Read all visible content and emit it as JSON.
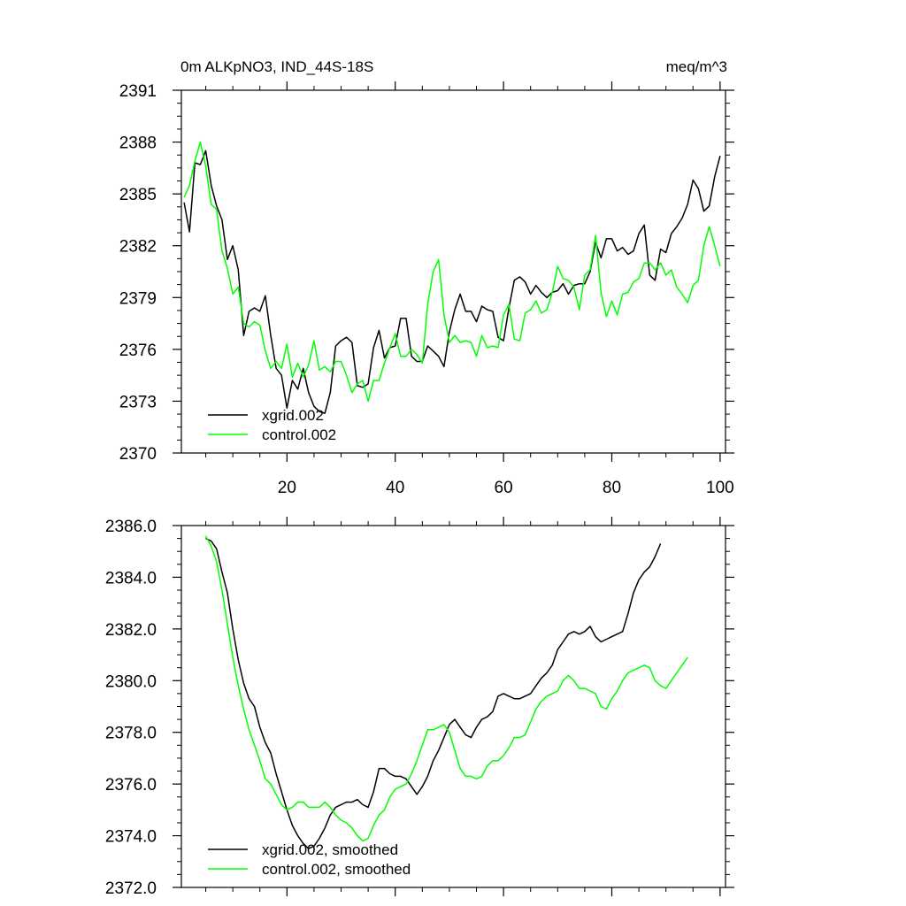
{
  "chart_data": [
    {
      "type": "line",
      "title_left": "0m ALKpNO3, IND_44S-18S",
      "title_right": "meq/m^3",
      "xlim": [
        0.5,
        101
      ],
      "ylim": [
        2370,
        2391
      ],
      "xticks": [
        20,
        40,
        60,
        80,
        100
      ],
      "xticklabels": [
        "20",
        "40",
        "60",
        "80",
        "100"
      ],
      "yticks": [
        2370,
        2373,
        2376,
        2379,
        2382,
        2385,
        2388,
        2391
      ],
      "yticklabels": [
        "2370",
        "2373",
        "2376",
        "2379",
        "2382",
        "2385",
        "2388",
        "2391"
      ],
      "legend_position": "lower-left",
      "series": [
        {
          "name": "xgrid.002",
          "color": "#000000",
          "x_start": 1,
          "values": [
            2384.5,
            2382.8,
            2386.8,
            2386.7,
            2387.5,
            2385.5,
            2384.3,
            2383.5,
            2381.2,
            2382.0,
            2380.6,
            2376.8,
            2378.2,
            2378.4,
            2378.2,
            2379.1,
            2376.8,
            2374.9,
            2374.5,
            2372.6,
            2374.2,
            2373.7,
            2374.9,
            2373.5,
            2372.7,
            2372.4,
            2372.3,
            2373.5,
            2376.2,
            2376.5,
            2376.7,
            2376.4,
            2373.9,
            2373.8,
            2374.0,
            2376.1,
            2377.1,
            2375.5,
            2376.1,
            2376.2,
            2377.8,
            2377.8,
            2375.6,
            2375.3,
            2375.3,
            2376.2,
            2375.9,
            2375.6,
            2375.0,
            2377.0,
            2378.3,
            2379.2,
            2378.2,
            2378.2,
            2377.6,
            2378.5,
            2378.3,
            2378.2,
            2376.7,
            2376.5,
            2378.4,
            2380.0,
            2380.2,
            2379.9,
            2379.2,
            2379.7,
            2379.3,
            2379.0,
            2379.3,
            2379.4,
            2379.8,
            2379.2,
            2379.7,
            2379.8,
            2379.8,
            2380.5,
            2382.2,
            2381.3,
            2382.4,
            2382.4,
            2381.7,
            2381.9,
            2381.5,
            2381.7,
            2382.7,
            2383.2,
            2380.3,
            2380.0,
            2381.8,
            2381.6,
            2382.7,
            2383.1,
            2383.6,
            2384.4,
            2385.8,
            2385.3,
            2384.0,
            2384.3,
            2386.0,
            2387.2
          ]
        },
        {
          "name": "control.002",
          "color": "#00ff00",
          "x_start": 1,
          "values": [
            2384.8,
            2385.5,
            2386.9,
            2388.0,
            2386.6,
            2384.4,
            2384.1,
            2381.7,
            2380.7,
            2379.2,
            2379.6,
            2377.5,
            2377.3,
            2377.6,
            2377.4,
            2375.9,
            2374.9,
            2375.3,
            2374.9,
            2376.3,
            2374.4,
            2375.2,
            2374.4,
            2375.1,
            2376.5,
            2374.8,
            2375.0,
            2374.7,
            2375.3,
            2375.3,
            2374.5,
            2373.5,
            2374.0,
            2374.2,
            2373.0,
            2374.2,
            2374.2,
            2375.2,
            2376.1,
            2376.9,
            2375.6,
            2375.6,
            2376.0,
            2375.7,
            2375.2,
            2378.6,
            2380.5,
            2381.2,
            2378.0,
            2376.4,
            2376.8,
            2376.4,
            2376.5,
            2376.4,
            2375.6,
            2376.8,
            2376.1,
            2376.2,
            2376.1,
            2378.0,
            2378.6,
            2376.6,
            2376.5,
            2378.1,
            2378.3,
            2378.8,
            2378.1,
            2378.3,
            2379.3,
            2380.8,
            2380.1,
            2380.0,
            2379.6,
            2378.3,
            2380.3,
            2380.6,
            2382.6,
            2379.3,
            2377.9,
            2378.8,
            2378.0,
            2379.2,
            2379.3,
            2379.9,
            2380.1,
            2381.0,
            2381.0,
            2380.6,
            2381.0,
            2380.3,
            2380.6,
            2379.6,
            2379.2,
            2378.7,
            2379.7,
            2380.0,
            2382.0,
            2383.1,
            2382.0,
            2380.8
          ]
        }
      ]
    },
    {
      "type": "line",
      "xlim": [
        0.5,
        101
      ],
      "ylim": [
        2372.0,
        2386.0
      ],
      "xticks": [
        20,
        40,
        60,
        80,
        100
      ],
      "yticks": [
        2372.0,
        2374.0,
        2376.0,
        2378.0,
        2380.0,
        2382.0,
        2384.0,
        2386.0
      ],
      "yticklabels": [
        "2372.0",
        "2374.0",
        "2376.0",
        "2378.0",
        "2380.0",
        "2382.0",
        "2384.0",
        "2386.0"
      ],
      "legend_position": "lower-left",
      "series": [
        {
          "name": "xgrid.002, smoothed",
          "color": "#000000",
          "x_start": 5,
          "values": [
            2385.5,
            2385.4,
            2385.1,
            2384.2,
            2383.4,
            2382.0,
            2380.8,
            2379.9,
            2379.3,
            2379.0,
            2378.2,
            2377.6,
            2377.2,
            2376.4,
            2375.7,
            2375.0,
            2374.4,
            2374.0,
            2373.7,
            2373.5,
            2373.6,
            2373.9,
            2374.3,
            2374.8,
            2375.1,
            2375.2,
            2375.3,
            2375.3,
            2375.4,
            2375.2,
            2375.1,
            2375.7,
            2376.6,
            2376.6,
            2376.4,
            2376.3,
            2376.3,
            2376.2,
            2375.9,
            2375.6,
            2375.9,
            2376.3,
            2376.9,
            2377.3,
            2377.8,
            2378.3,
            2378.5,
            2378.2,
            2377.9,
            2377.8,
            2378.2,
            2378.5,
            2378.6,
            2378.8,
            2379.4,
            2379.5,
            2379.4,
            2379.3,
            2379.3,
            2379.4,
            2379.5,
            2379.8,
            2380.1,
            2380.3,
            2380.6,
            2381.2,
            2381.5,
            2381.8,
            2381.9,
            2381.8,
            2381.9,
            2382.1,
            2381.7,
            2381.5,
            2381.6,
            2381.7,
            2381.8,
            2381.9,
            2382.6,
            2383.4,
            2383.9,
            2384.2,
            2384.4,
            2384.8,
            2385.3
          ]
        },
        {
          "name": "control.002, smoothed",
          "color": "#00ff00",
          "x_start": 5,
          "values": [
            2385.6,
            2385.2,
            2384.6,
            2383.5,
            2382.2,
            2380.9,
            2379.8,
            2378.9,
            2378.1,
            2377.5,
            2376.9,
            2376.2,
            2376.0,
            2375.6,
            2375.2,
            2375.0,
            2375.1,
            2375.3,
            2375.3,
            2375.1,
            2375.1,
            2375.1,
            2375.3,
            2375.1,
            2374.8,
            2374.6,
            2374.5,
            2374.3,
            2374.0,
            2373.8,
            2373.9,
            2374.4,
            2374.8,
            2375.0,
            2375.5,
            2375.8,
            2375.9,
            2376.0,
            2376.4,
            2376.9,
            2377.5,
            2378.1,
            2378.1,
            2378.2,
            2378.3,
            2378.0,
            2377.3,
            2376.6,
            2376.3,
            2376.3,
            2376.2,
            2376.3,
            2376.7,
            2376.9,
            2376.9,
            2377.1,
            2377.4,
            2377.8,
            2377.8,
            2377.9,
            2378.4,
            2378.9,
            2379.2,
            2379.4,
            2379.5,
            2379.6,
            2380.0,
            2380.2,
            2380.0,
            2379.7,
            2379.7,
            2379.6,
            2379.5,
            2379.0,
            2378.9,
            2379.3,
            2379.6,
            2380.0,
            2380.3,
            2380.4,
            2380.5,
            2380.6,
            2380.5,
            2380.0,
            2379.8,
            2379.7,
            2380.0,
            2380.3,
            2380.6,
            2380.9
          ]
        }
      ]
    }
  ]
}
